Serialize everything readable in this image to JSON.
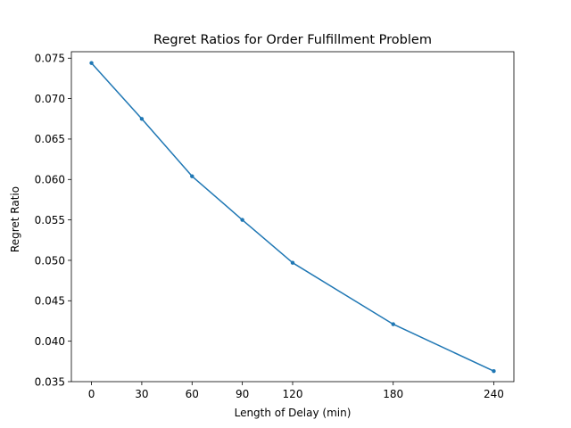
{
  "chart_data": {
    "type": "line",
    "title": "Regret Ratios for Order Fulfillment Problem",
    "xlabel": "Length of Delay (min)",
    "ylabel": "Regret Ratio",
    "xlim": [
      -12,
      252
    ],
    "ylim": [
      0.035,
      0.0758
    ],
    "xticks": [
      0,
      30,
      60,
      90,
      120,
      180,
      240
    ],
    "yticks": [
      0.035,
      0.04,
      0.045,
      0.05,
      0.055,
      0.06,
      0.065,
      0.07,
      0.075
    ],
    "ytick_labels": [
      "0.035",
      "0.040",
      "0.045",
      "0.050",
      "0.055",
      "0.060",
      "0.065",
      "0.070",
      "0.075"
    ],
    "grid": false,
    "series": [
      {
        "color": "#1f77b4",
        "marker": "point",
        "x": [
          0,
          30,
          60,
          90,
          120,
          180,
          240
        ],
        "y": [
          0.0744,
          0.0675,
          0.0604,
          0.055,
          0.0497,
          0.0421,
          0.0363
        ]
      }
    ]
  }
}
